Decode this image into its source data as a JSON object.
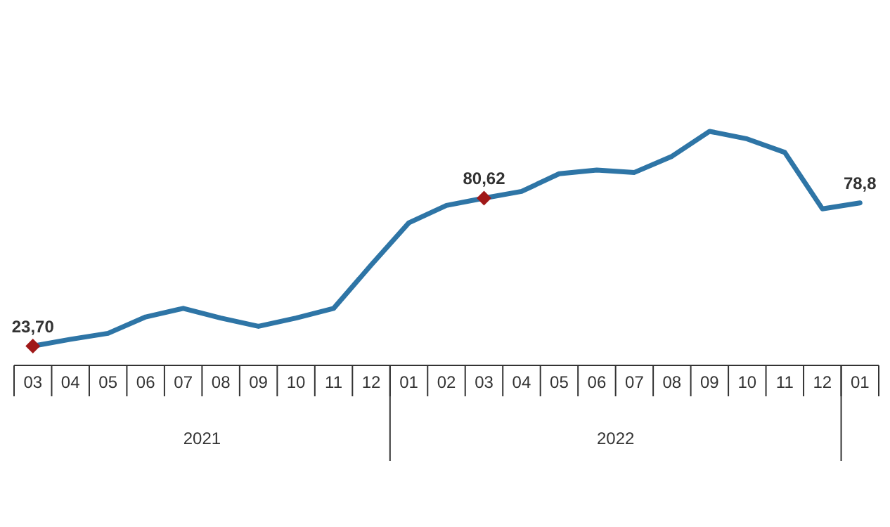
{
  "chart_data": {
    "type": "line",
    "categories": [
      "03",
      "04",
      "05",
      "06",
      "07",
      "08",
      "09",
      "10",
      "11",
      "12",
      "01",
      "02",
      "03",
      "04",
      "05",
      "06",
      "07",
      "08",
      "09",
      "10",
      "11",
      "12",
      "01"
    ],
    "series": [
      {
        "color": "#2e75a6",
        "values": [
          23.7,
          26.3,
          28.6,
          34.9,
          38.2,
          34.5,
          31.3,
          34.5,
          38.2,
          54.9,
          71.1,
          77.8,
          80.62,
          83.2,
          90.0,
          91.4,
          90.5,
          96.7,
          106.3,
          103.4,
          98.2,
          76.5,
          78.8
        ],
        "value_labels": [
          null,
          null,
          null,
          null,
          null,
          null,
          null,
          null,
          null,
          null,
          null,
          null,
          null,
          null,
          null,
          null,
          null,
          null,
          null,
          null,
          null,
          null,
          "78,8"
        ]
      },
      {
        "type": "scatter",
        "color": "#a01818",
        "marker": "diamond",
        "values": [
          23.7,
          null,
          null,
          null,
          null,
          null,
          null,
          null,
          null,
          null,
          null,
          null,
          80.62,
          null,
          null,
          null,
          null,
          null,
          null,
          null,
          null,
          null,
          null
        ],
        "value_labels": [
          "23,70",
          null,
          null,
          null,
          null,
          null,
          null,
          null,
          null,
          null,
          null,
          null,
          "80,62",
          null,
          null,
          null,
          null,
          null,
          null,
          null,
          null,
          null,
          null
        ]
      }
    ],
    "annotations": [
      "2021",
      "2022"
    ]
  }
}
